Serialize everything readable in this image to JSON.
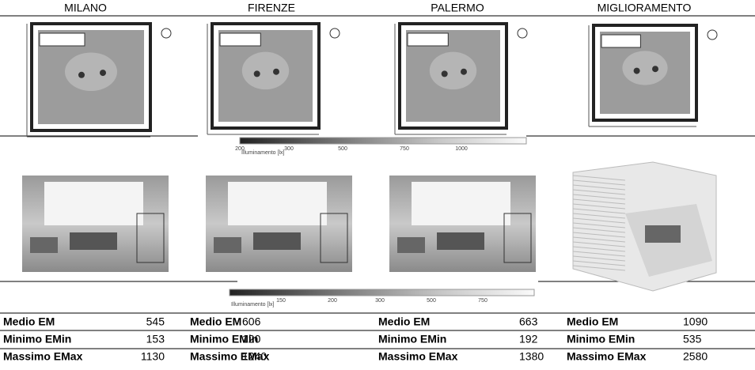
{
  "headers": [
    "MILANO",
    "FIRENZE",
    "PALERMO",
    "MIGLIORAMENTO"
  ],
  "scale_top": {
    "caption": "Illuminamento [lx]",
    "labels": [
      "200",
      "300",
      "500",
      "750",
      "1000"
    ]
  },
  "scale_bottom": {
    "caption": "Illuminamento [lx]",
    "labels": [
      "150",
      "200",
      "300",
      "500",
      "750"
    ]
  },
  "stats": {
    "rows": [
      {
        "cells": [
          {
            "label": "Medio EM",
            "value": 545
          },
          {
            "label": "Medio EM",
            "value": 606
          },
          {
            "label": "Medio EM",
            "value": 663
          },
          {
            "label": "Medio EM",
            "value": 1090
          }
        ]
      },
      {
        "cells": [
          {
            "label": "Minimo EMin",
            "value": 153
          },
          {
            "label": "Minimo EMin",
            "value": 120
          },
          {
            "label": "Minimo EMin",
            "value": 192
          },
          {
            "label": "Minimo EMin",
            "value": 535
          }
        ]
      },
      {
        "cells": [
          {
            "label": "Massimo EMax",
            "value": 1130
          },
          {
            "label": "Massimo EMax",
            "value": 1240
          },
          {
            "label": "Massimo EMax",
            "value": 1380
          },
          {
            "label": "Massimo EMax",
            "value": 2580
          }
        ]
      }
    ]
  }
}
